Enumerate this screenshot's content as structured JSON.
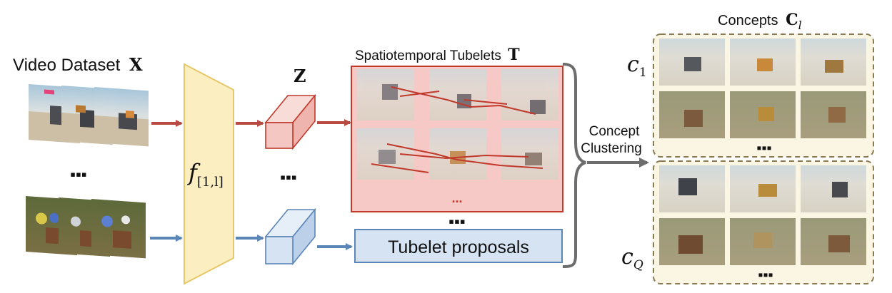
{
  "dataset": {
    "title": "Video Dataset",
    "symbol": "X"
  },
  "encoder": {
    "label": "f",
    "subscript": "[1,l]"
  },
  "features": {
    "symbol": "Z"
  },
  "tubelets": {
    "title": "Spatiotemporal Tubelets",
    "symbol": "T",
    "more": "..."
  },
  "proposals": {
    "label": "Tubelet proposals"
  },
  "clustering": {
    "line1": "Concept",
    "line2": "Clustering"
  },
  "concepts": {
    "title": "Concepts",
    "symbol": "C",
    "subscript": "l",
    "c_first": "c",
    "c_first_sub": "1",
    "c_last": "c",
    "c_last_sub": "Q"
  },
  "ellipsis": "▪▪▪",
  "colors": {
    "red": "#c0392b",
    "red_fill": "#f4c7c3",
    "blue": "#5b86b8",
    "blue_fill": "#d5e3f3",
    "encoder_fill": "#fbeec0",
    "encoder_stroke": "#e6c86a",
    "concept_fill": "#fbf6e4",
    "concept_stroke": "#8a7a52"
  }
}
